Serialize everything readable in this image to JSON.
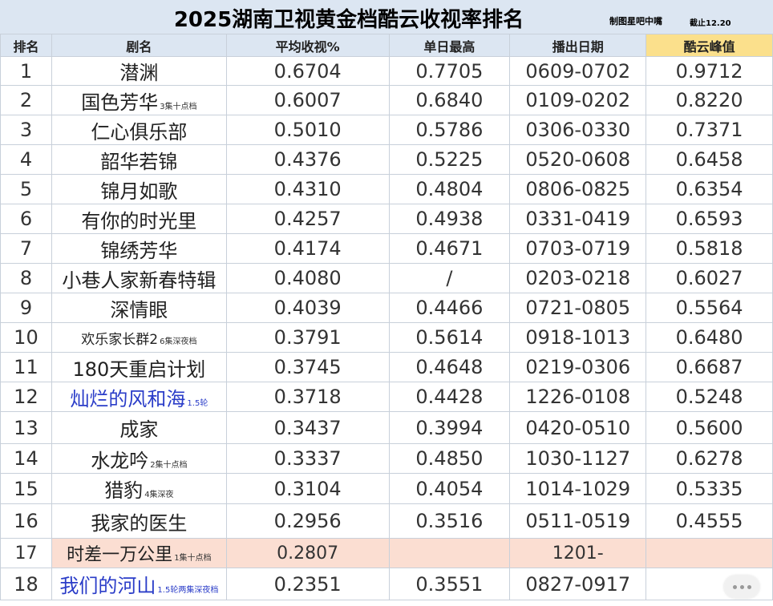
{
  "title": "2025湖南卫视黄金档酷云收视率排名",
  "credit": "制图星吧中嘴",
  "cutoff": "截止12.20",
  "headers": [
    "排名",
    "剧名",
    "平均收视%",
    "单日最高",
    "播出日期",
    "酷云峰值"
  ],
  "header_highlight_color": "#fbe08c",
  "rows": [
    {
      "rank": "1",
      "name": "潜渊",
      "note": "",
      "avg": "0.6704",
      "max": "0.7705",
      "date": "0609-0702",
      "peak": "0.9712"
    },
    {
      "rank": "2",
      "name": "国色芳华",
      "note": "3集十点档",
      "avg": "0.6007",
      "max": "0.6840",
      "date": "0109-0202",
      "peak": "0.8220"
    },
    {
      "rank": "3",
      "name": "仁心俱乐部",
      "note": "",
      "avg": "0.5010",
      "max": "0.5786",
      "date": "0306-0330",
      "peak": "0.7371"
    },
    {
      "rank": "4",
      "name": "韶华若锦",
      "note": "",
      "avg": "0.4376",
      "max": "0.5225",
      "date": "0520-0608",
      "peak": "0.6458"
    },
    {
      "rank": "5",
      "name": "锦月如歌",
      "note": "",
      "avg": "0.4310",
      "max": "0.4804",
      "date": "0806-0825",
      "peak": "0.6354"
    },
    {
      "rank": "6",
      "name": "有你的时光里",
      "note": "",
      "avg": "0.4257",
      "max": "0.4938",
      "date": "0331-0419",
      "peak": "0.6593"
    },
    {
      "rank": "7",
      "name": "锦绣芳华",
      "note": "",
      "avg": "0.4174",
      "max": "0.4671",
      "date": "0703-0719",
      "peak": "0.5818"
    },
    {
      "rank": "8",
      "name": "小巷人家新春特辑",
      "note": "",
      "avg": "0.4080",
      "max": "/",
      "date": "0203-0218",
      "peak": "0.6027"
    },
    {
      "rank": "9",
      "name": "深情眼",
      "note": "",
      "avg": "0.4039",
      "max": "0.4466",
      "date": "0721-0805",
      "peak": "0.5564"
    },
    {
      "rank": "10",
      "name": "欢乐家长群2",
      "note": "6集深夜档",
      "avg": "0.3791",
      "max": "0.5614",
      "date": "0918-1013",
      "peak": "0.6480"
    },
    {
      "rank": "11",
      "name": "180天重启计划",
      "note": "",
      "avg": "0.3745",
      "max": "0.4648",
      "date": "0219-0306",
      "peak": "0.6687"
    },
    {
      "rank": "12",
      "name": "灿烂的风和海",
      "note": "1.5轮",
      "avg": "0.3718",
      "max": "0.4428",
      "date": "1226-0108",
      "peak": "0.5248"
    },
    {
      "rank": "13",
      "name": "成家",
      "note": "",
      "avg": "0.3437",
      "max": "0.3994",
      "date": "0420-0510",
      "peak": "0.5600"
    },
    {
      "rank": "14",
      "name": "水龙吟",
      "note": "2集十点档",
      "avg": "0.3337",
      "max": "0.4850",
      "date": "1030-1127",
      "peak": "0.6278"
    },
    {
      "rank": "15",
      "name": "猎豹",
      "note": "4集深夜",
      "avg": "0.3104",
      "max": "0.4054",
      "date": "1014-1029",
      "peak": "0.5335"
    },
    {
      "rank": "16",
      "name": "我家的医生",
      "note": "",
      "avg": "0.2956",
      "max": "0.3516",
      "date": "0511-0519",
      "peak": "0.4555"
    },
    {
      "rank": "17",
      "name": "时差一万公里",
      "note": "1集十点档",
      "avg": "0.2807",
      "max": "",
      "date": "1201-",
      "peak": ""
    },
    {
      "rank": "18",
      "name": "我们的河山",
      "note": "1.5轮两集深夜档",
      "avg": "0.2351",
      "max": "0.3551",
      "date": "0827-0917",
      "peak": ""
    }
  ],
  "name_colors": {
    "blue": "#2a3cc8"
  },
  "pink_row_color": "#fbded2",
  "more_icon": "more-dots-icon"
}
